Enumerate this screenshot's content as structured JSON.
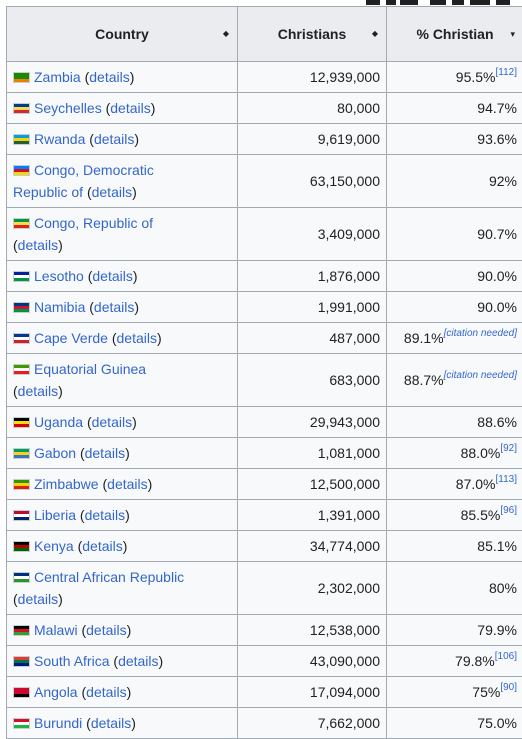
{
  "header": {
    "country": "Country",
    "christians": "Christians",
    "pct": "% Christian",
    "sort_icon": "sort-both-icon",
    "sort_desc_icon": "sort-desc-icon"
  },
  "details_label": "details",
  "rows": [
    {
      "country": "Zambia",
      "christians": "12,939,000",
      "pct": "95.5%",
      "ref": "[112]",
      "flag": [
        "#198a00",
        "#198a00",
        "#ef7d00"
      ]
    },
    {
      "country": "Seychelles",
      "christians": "80,000",
      "pct": "94.7%",
      "ref": "",
      "flag": [
        "#003f87",
        "#fcd856",
        "#d62828"
      ]
    },
    {
      "country": "Rwanda",
      "christians": "9,619,000",
      "pct": "93.6%",
      "ref": "",
      "flag": [
        "#00a1de",
        "#fad201",
        "#20603d"
      ]
    },
    {
      "country": "Congo, Democratic",
      "country2": "Republic of",
      "christians": "63,150,000",
      "pct": "92%",
      "ref": "",
      "flag": [
        "#007fff",
        "#ce1021",
        "#f7d618"
      ]
    },
    {
      "country": "Congo, Republic of",
      "christians": "3,409,000",
      "pct": "90.7%",
      "ref": "",
      "flag": [
        "#009543",
        "#fbde4a",
        "#dc241f"
      ]
    },
    {
      "country": "Lesotho",
      "christians": "1,876,000",
      "pct": "90.0%",
      "ref": "",
      "flag": [
        "#00209f",
        "#ffffff",
        "#009543"
      ]
    },
    {
      "country": "Namibia",
      "christians": "1,991,000",
      "pct": "90.0%",
      "ref": "",
      "flag": [
        "#003580",
        "#d21034",
        "#009543"
      ]
    },
    {
      "country": "Cape Verde",
      "christians": "487,000",
      "pct": "89.1%",
      "ref": "",
      "cn": "[citation needed]",
      "flag": [
        "#003893",
        "#ffffff",
        "#cf2027"
      ]
    },
    {
      "country": "Equatorial Guinea",
      "christians": "683,000",
      "pct": "88.7%",
      "ref": "",
      "cn": "[citation needed]",
      "flag": [
        "#3e9a00",
        "#ffffff",
        "#e32118"
      ]
    },
    {
      "country": "Uganda",
      "christians": "29,943,000",
      "pct": "88.6%",
      "ref": "",
      "flag": [
        "#000000",
        "#fcdc04",
        "#d90000"
      ]
    },
    {
      "country": "Gabon",
      "christians": "1,081,000",
      "pct": "88.0%",
      "ref": "[92]",
      "flag": [
        "#009e60",
        "#fcd116",
        "#3a75c4"
      ]
    },
    {
      "country": "Zimbabwe",
      "christians": "12,500,000",
      "pct": "87.0%",
      "ref": "[113]",
      "flag": [
        "#319208",
        "#ffd200",
        "#de2010"
      ]
    },
    {
      "country": "Liberia",
      "christians": "1,391,000",
      "pct": "85.5%",
      "ref": "[96]",
      "flag": [
        "#bf0a30",
        "#ffffff",
        "#002868"
      ]
    },
    {
      "country": "Kenya",
      "christians": "34,774,000",
      "pct": "85.1%",
      "ref": "",
      "flag": [
        "#000000",
        "#bb0000",
        "#006600"
      ]
    },
    {
      "country": "Central African Republic",
      "christians": "2,302,000",
      "pct": "80%",
      "ref": "",
      "flag": [
        "#003082",
        "#ffffff",
        "#289728"
      ]
    },
    {
      "country": "Malawi",
      "christians": "12,538,000",
      "pct": "79.9%",
      "ref": "",
      "flag": [
        "#000000",
        "#ce1126",
        "#339e35"
      ]
    },
    {
      "country": "South Africa",
      "christians": "43,090,000",
      "pct": "79.8%",
      "ref": "[106]",
      "flag": [
        "#e03c31",
        "#007749",
        "#001489"
      ]
    },
    {
      "country": "Angola",
      "christians": "17,094,000",
      "pct": "75%",
      "ref": "[90]",
      "flag": [
        "#cc092f",
        "#cc092f",
        "#000000"
      ]
    },
    {
      "country": "Burundi",
      "christians": "7,662,000",
      "pct": "75.0%",
      "ref": "",
      "flag": [
        "#ce1126",
        "#ffffff",
        "#1eb53a"
      ]
    }
  ]
}
